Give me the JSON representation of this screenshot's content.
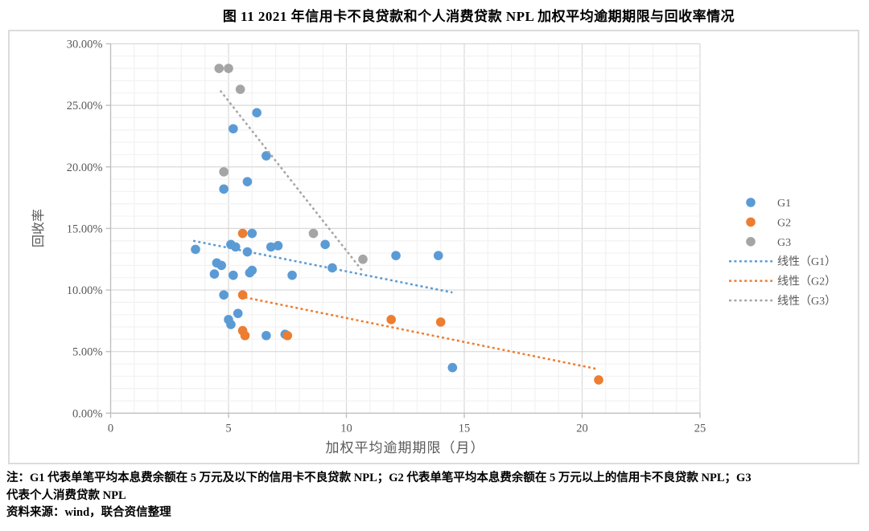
{
  "title": "图 11  2021 年信用卡不良贷款和个人消费贷款 NPL 加权平均逾期期限与回收率情况",
  "chart_data": {
    "type": "scatter",
    "xlabel": "加权平均逾期期限（月）",
    "ylabel": "回收率",
    "xlim": [
      0,
      25
    ],
    "ylim_pct": [
      0,
      30
    ],
    "x_ticks": [
      0,
      5,
      10,
      15,
      20,
      25
    ],
    "y_ticks": [
      0,
      5,
      10,
      15,
      20,
      25,
      30
    ],
    "y_tick_labels": [
      "0.00%",
      "5.00%",
      "10.00%",
      "15.00%",
      "20.00%",
      "25.00%",
      "30.00%"
    ],
    "grid": "minor 1 unit / major 5 units, on",
    "legend_position": "right",
    "series": [
      {
        "name": "G1",
        "color": "#5B9BD5",
        "points": [
          [
            6.2,
            24.4
          ],
          [
            5.2,
            23.1
          ],
          [
            6.6,
            20.9
          ],
          [
            5.8,
            18.8
          ],
          [
            4.8,
            18.2
          ],
          [
            6.0,
            14.6
          ],
          [
            5.1,
            13.7
          ],
          [
            5.3,
            13.5
          ],
          [
            3.6,
            13.3
          ],
          [
            5.8,
            13.1
          ],
          [
            6.8,
            13.5
          ],
          [
            7.1,
            13.6
          ],
          [
            4.5,
            12.2
          ],
          [
            4.7,
            12.0
          ],
          [
            4.4,
            11.3
          ],
          [
            5.2,
            11.2
          ],
          [
            5.9,
            11.4
          ],
          [
            6.0,
            11.6
          ],
          [
            7.7,
            11.2
          ],
          [
            9.1,
            13.7
          ],
          [
            9.4,
            11.8
          ],
          [
            12.1,
            12.8
          ],
          [
            13.9,
            12.8
          ],
          [
            4.8,
            9.6
          ],
          [
            5.4,
            8.1
          ],
          [
            5.0,
            7.6
          ],
          [
            5.1,
            7.2
          ],
          [
            6.6,
            6.3
          ],
          [
            7.4,
            6.4
          ],
          [
            14.5,
            3.7
          ]
        ]
      },
      {
        "name": "G2",
        "color": "#ED7D31",
        "points": [
          [
            5.6,
            14.6
          ],
          [
            5.6,
            9.6
          ],
          [
            5.6,
            6.7
          ],
          [
            5.7,
            6.3
          ],
          [
            7.5,
            6.3
          ],
          [
            11.9,
            7.6
          ],
          [
            14.0,
            7.4
          ],
          [
            20.7,
            2.7
          ]
        ]
      },
      {
        "name": "G3",
        "color": "#A5A5A5",
        "points": [
          [
            4.6,
            28.0
          ],
          [
            5.0,
            28.0
          ],
          [
            5.5,
            26.3
          ],
          [
            4.8,
            19.6
          ],
          [
            8.6,
            14.6
          ],
          [
            10.7,
            12.5
          ]
        ]
      }
    ],
    "trendlines": [
      {
        "name": "线性（G1）",
        "color": "#5B9BD5",
        "from": [
          3.5,
          14.0
        ],
        "to": [
          14.5,
          9.8
        ]
      },
      {
        "name": "线性（G2）",
        "color": "#ED7D31",
        "from": [
          5.7,
          9.4
        ],
        "to": [
          20.6,
          3.6
        ]
      },
      {
        "name": "线性（G3）",
        "color": "#A5A5A5",
        "from": [
          4.65,
          26.2
        ],
        "to": [
          10.7,
          11.5
        ]
      }
    ]
  },
  "notes": {
    "line1": "注：G1 代表单笔平均本息费余额在 5 万元及以下的信用卡不良贷款 NPL；G2 代表单笔平均本息费余额在 5 万元以上的信用卡不良贷款 NPL；G3",
    "line2": "代表个人消费贷款 NPL",
    "source": "资料来源：wind，联合资信整理"
  },
  "colors": {
    "g1": "#5B9BD5",
    "g2": "#ED7D31",
    "g3": "#A5A5A5",
    "grid_minor": "#F2F2F2",
    "grid_major": "#D9D9D9",
    "axis": "#BFBFBF",
    "tick_text": "#595959"
  }
}
